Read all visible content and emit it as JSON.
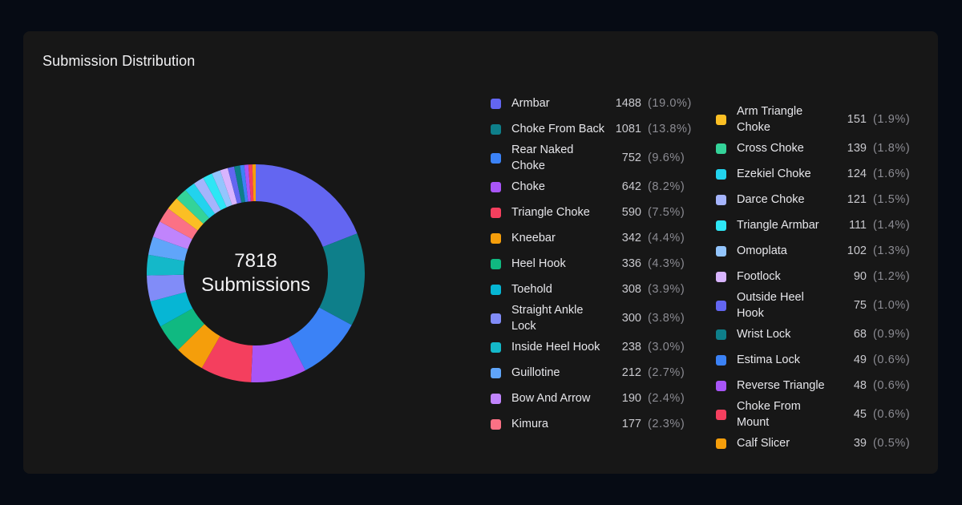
{
  "card": {
    "title": "Submission Distribution"
  },
  "center": {
    "total": "7818",
    "label": "Submissions"
  },
  "chart_data": {
    "type": "pie",
    "title": "Submission Distribution",
    "total": 7818,
    "slices": [
      {
        "name": "Armbar",
        "value": 1488,
        "pct": "(19.0%)",
        "color": "#6366f1"
      },
      {
        "name": "Choke From Back",
        "value": 1081,
        "pct": "(13.8%)",
        "color": "#0e7f8a"
      },
      {
        "name": "Rear Naked Choke",
        "value": 752,
        "pct": "(9.6%)",
        "color": "#3b82f6"
      },
      {
        "name": "Choke",
        "value": 642,
        "pct": "(8.2%)",
        "color": "#a855f7"
      },
      {
        "name": "Triangle Choke",
        "value": 590,
        "pct": "(7.5%)",
        "color": "#f43f5e"
      },
      {
        "name": "Kneebar",
        "value": 342,
        "pct": "(4.4%)",
        "color": "#f59e0b"
      },
      {
        "name": "Heel Hook",
        "value": 336,
        "pct": "(4.3%)",
        "color": "#10b981"
      },
      {
        "name": "Toehold",
        "value": 308,
        "pct": "(3.9%)",
        "color": "#06b6d4"
      },
      {
        "name": "Straight Ankle Lock",
        "value": 300,
        "pct": "(3.8%)",
        "color": "#818cf8"
      },
      {
        "name": "Inside Heel Hook",
        "value": 238,
        "pct": "(3.0%)",
        "color": "#14b8c9"
      },
      {
        "name": "Guillotine",
        "value": 212,
        "pct": "(2.7%)",
        "color": "#60a5fa"
      },
      {
        "name": "Bow And Arrow",
        "value": 190,
        "pct": "(2.4%)",
        "color": "#c084fc"
      },
      {
        "name": "Kimura",
        "value": 177,
        "pct": "(2.3%)",
        "color": "#fb7185"
      },
      {
        "name": "Arm Triangle Choke",
        "value": 151,
        "pct": "(1.9%)",
        "color": "#fbbf24"
      },
      {
        "name": "Cross Choke",
        "value": 139,
        "pct": "(1.8%)",
        "color": "#34d399"
      },
      {
        "name": "Ezekiel Choke",
        "value": 124,
        "pct": "(1.6%)",
        "color": "#22d3ee"
      },
      {
        "name": "Darce Choke",
        "value": 121,
        "pct": "(1.5%)",
        "color": "#a5b4fc"
      },
      {
        "name": "Triangle Armbar",
        "value": 111,
        "pct": "(1.4%)",
        "color": "#2ee6f5"
      },
      {
        "name": "Omoplata",
        "value": 102,
        "pct": "(1.3%)",
        "color": "#93c5fd"
      },
      {
        "name": "Footlock",
        "value": 90,
        "pct": "(1.2%)",
        "color": "#d8b4fe"
      },
      {
        "name": "Outside Heel Hook",
        "value": 75,
        "pct": "(1.0%)",
        "color": "#6366f1"
      },
      {
        "name": "Wrist Lock",
        "value": 68,
        "pct": "(0.9%)",
        "color": "#0e7f8a"
      },
      {
        "name": "Estima Lock",
        "value": 49,
        "pct": "(0.6%)",
        "color": "#3b82f6"
      },
      {
        "name": "Reverse Triangle",
        "value": 48,
        "pct": "(0.6%)",
        "color": "#a855f7"
      },
      {
        "name": "Choke From Mount",
        "value": 45,
        "pct": "(0.6%)",
        "color": "#f43f5e"
      },
      {
        "name": "Calf Slicer",
        "value": 39,
        "pct": "(0.5%)",
        "color": "#f59e0b"
      }
    ],
    "legend": "right",
    "legend_columns": 2
  }
}
